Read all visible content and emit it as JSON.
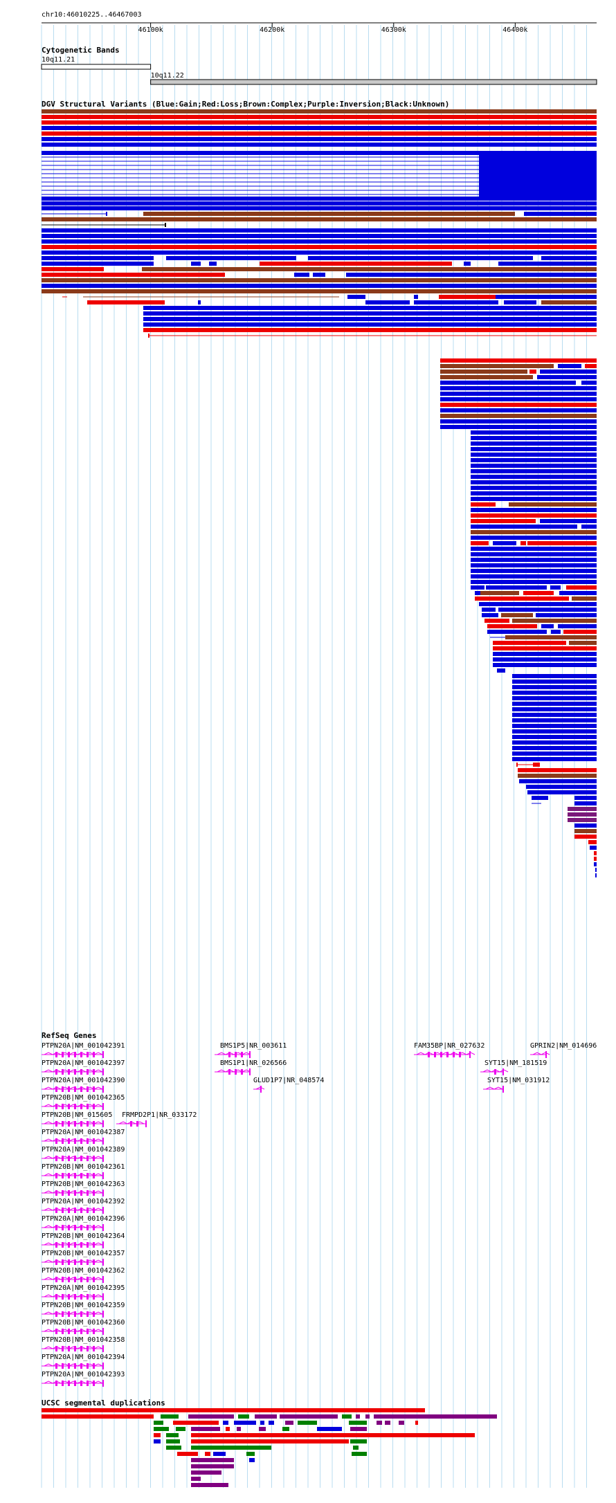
{
  "location": "chr10:46010225..46467003",
  "ruler": {
    "ticks": [
      "46100k",
      "46200k",
      "46300k",
      "46400k"
    ]
  },
  "tracks": {
    "cytoband": {
      "title": "Cytogenetic Bands",
      "bands": [
        {
          "name": "10q11.21",
          "start": 46010225,
          "end": 46100000
        },
        {
          "name": "10q11.22",
          "start": 46100000,
          "end": 46467003
        }
      ]
    },
    "dgv": {
      "title": "DGV Structural Variants (Blue:Gain;Red:Loss;Brown:Complex;Purple:Inversion;Black:Unknown)",
      "colors": {
        "gain": "#0000dd",
        "loss": "#ee0000",
        "complex": "#8b3a1a",
        "inversion": "#7a1a7a",
        "unknown": "#000000"
      }
    },
    "refseq": {
      "title": "RefSeq Genes",
      "color": "#ee00ee",
      "genes": [
        "PTPN20A|NM_001042391",
        "PTPN20A|NM_001042397",
        "PTPN20A|NM_001042390",
        "PTPN20B|NM_001042365",
        "PTPN20B|NM_015605",
        "PTPN20A|NM_001042387",
        "PTPN20A|NM_001042389",
        "PTPN20B|NM_001042361",
        "PTPN20B|NM_001042363",
        "PTPN20A|NM_001042392",
        "PTPN20A|NM_001042396",
        "PTPN20B|NM_001042364",
        "PTPN20B|NM_001042357",
        "PTPN20B|NM_001042362",
        "PTPN20A|NM_001042395",
        "PTPN20B|NM_001042359",
        "PTPN20B|NM_001042360",
        "PTPN20B|NM_001042358",
        "PTPN20A|NM_001042394",
        "PTPN20A|NM_001042393"
      ],
      "other_genes": [
        "FRMPD2P1|NR_033172",
        "BMS1P5|NR_003611",
        "BMS1P1|NR_026566",
        "GLUD1P7|NR_048574",
        "FAM35BP|NR_027632",
        "SYT15|NM_181519",
        "SYT15|NM_031912",
        "GPRIN2|NM_014696"
      ]
    },
    "segdup": {
      "title": "UCSC segmental duplications",
      "colors": {
        "red": "#ee0000",
        "purple": "#800080",
        "green": "#008000",
        "blue": "#0000dd"
      }
    }
  }
}
